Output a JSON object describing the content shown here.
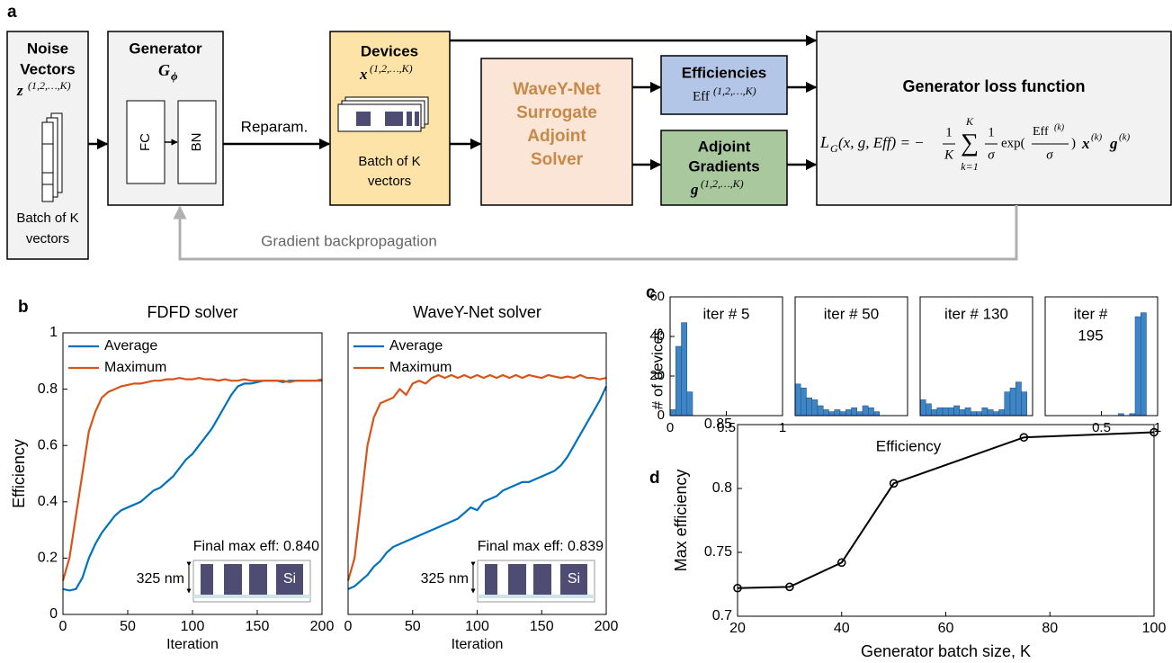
{
  "panel_labels": [
    "a",
    "b",
    "c",
    "d"
  ],
  "diagram": {
    "noise": {
      "title": [
        "Noise",
        "Vectors"
      ],
      "symbol": "z",
      "superscript": "(1,2,…,K)",
      "caption": [
        "Batch of K",
        "vectors"
      ]
    },
    "generator": {
      "title": "Generator",
      "symbol": "G",
      "subscript": "ϕ",
      "layers": [
        "FC",
        "BN"
      ]
    },
    "reparam": "Reparam.",
    "devices": {
      "title": "Devices",
      "symbol": "x",
      "superscript": "(1,2,…,K)",
      "caption": [
        "Batch of K",
        "vectors"
      ]
    },
    "solver": [
      "WaveY-Net",
      "Surrogate",
      "Adjoint",
      "Solver"
    ],
    "efficiencies": {
      "title": "Efficiencies",
      "symbol": "Eff",
      "superscript": "(1,2,…,K)"
    },
    "gradients": {
      "title": [
        "Adjoint",
        "Gradients"
      ],
      "symbol": "g",
      "superscript": "(1,2,…,K)"
    },
    "loss": {
      "title": "Generator loss function",
      "formula": {
        "lhs": "L",
        "lhs_sub": "G",
        "args": "(x, g, Eff) = −",
        "frac1_num": "1",
        "frac1_den": "K",
        "sum": "∑",
        "sum_top": "K",
        "sum_bottom": "k=1",
        "frac2_num": "1",
        "frac2_den": "σ",
        "exp": "exp(",
        "frac3_num": "Eff",
        "frac3_sup": "(k)",
        "frac3_den": "σ",
        "close": ")",
        "tail1": "x",
        "tail1_sup": "(k)",
        "tail2": "g",
        "tail2_sup": "(k)"
      }
    },
    "backprop": "Gradient backpropagation"
  },
  "panel_c_labels": {
    "x_label": "Efficiency",
    "y_label": "# of devices"
  },
  "chart_data": [
    {
      "type": "line",
      "title": "FDFD solver",
      "x_label": "Iteration",
      "y_label": "Efficiency",
      "x": [
        0,
        5,
        10,
        15,
        20,
        25,
        30,
        35,
        40,
        45,
        50,
        55,
        60,
        65,
        70,
        75,
        80,
        85,
        90,
        95,
        100,
        105,
        110,
        115,
        120,
        125,
        130,
        135,
        140,
        145,
        150,
        155,
        160,
        165,
        170,
        175,
        180,
        185,
        190,
        195,
        200
      ],
      "series": [
        {
          "name": "Average",
          "color": "#0072bd",
          "values": [
            0.09,
            0.085,
            0.09,
            0.13,
            0.2,
            0.25,
            0.29,
            0.32,
            0.35,
            0.37,
            0.38,
            0.39,
            0.4,
            0.42,
            0.44,
            0.45,
            0.47,
            0.49,
            0.52,
            0.55,
            0.57,
            0.6,
            0.63,
            0.66,
            0.7,
            0.74,
            0.78,
            0.81,
            0.82,
            0.82,
            0.825,
            0.83,
            0.83,
            0.83,
            0.825,
            0.83,
            0.83,
            0.83,
            0.83,
            0.83,
            0.83
          ]
        },
        {
          "name": "Maximum",
          "color": "#d95319",
          "values": [
            0.12,
            0.2,
            0.35,
            0.5,
            0.65,
            0.72,
            0.77,
            0.79,
            0.8,
            0.81,
            0.815,
            0.82,
            0.82,
            0.825,
            0.83,
            0.83,
            0.835,
            0.835,
            0.84,
            0.835,
            0.835,
            0.84,
            0.835,
            0.835,
            0.83,
            0.835,
            0.83,
            0.83,
            0.835,
            0.83,
            0.83,
            0.83,
            0.83,
            0.83,
            0.83,
            0.825,
            0.83,
            0.83,
            0.83,
            0.83,
            0.835
          ]
        }
      ],
      "xlim": [
        0,
        200
      ],
      "xticks": [
        0,
        50,
        100,
        150,
        200
      ],
      "ylim": [
        0,
        1
      ],
      "yticks": [
        0,
        0.2,
        0.4,
        0.6,
        0.8,
        1
      ],
      "legend": "upper left",
      "annotation": "Final max eff: 0.840",
      "inset": {
        "height_label": "325 nm",
        "material": "Si"
      }
    },
    {
      "type": "line",
      "title": "WaveY-Net solver",
      "x_label": "Iteration",
      "x": [
        0,
        5,
        10,
        15,
        20,
        25,
        30,
        35,
        40,
        45,
        50,
        55,
        60,
        65,
        70,
        75,
        80,
        85,
        90,
        95,
        100,
        105,
        110,
        115,
        120,
        125,
        130,
        135,
        140,
        145,
        150,
        155,
        160,
        165,
        170,
        175,
        180,
        185,
        190,
        195,
        200
      ],
      "series": [
        {
          "name": "Average",
          "color": "#0072bd",
          "values": [
            0.09,
            0.1,
            0.12,
            0.14,
            0.17,
            0.19,
            0.22,
            0.24,
            0.25,
            0.26,
            0.27,
            0.28,
            0.29,
            0.3,
            0.31,
            0.32,
            0.33,
            0.34,
            0.36,
            0.38,
            0.37,
            0.4,
            0.41,
            0.42,
            0.44,
            0.45,
            0.46,
            0.47,
            0.47,
            0.48,
            0.49,
            0.5,
            0.51,
            0.53,
            0.56,
            0.6,
            0.64,
            0.68,
            0.72,
            0.76,
            0.81
          ]
        },
        {
          "name": "Maximum",
          "color": "#d95319",
          "values": [
            0.12,
            0.2,
            0.4,
            0.6,
            0.7,
            0.75,
            0.76,
            0.77,
            0.8,
            0.78,
            0.82,
            0.83,
            0.82,
            0.84,
            0.85,
            0.84,
            0.85,
            0.84,
            0.85,
            0.84,
            0.85,
            0.84,
            0.85,
            0.84,
            0.85,
            0.84,
            0.85,
            0.84,
            0.85,
            0.845,
            0.84,
            0.85,
            0.845,
            0.84,
            0.845,
            0.84,
            0.85,
            0.84,
            0.84,
            0.835,
            0.84
          ]
        }
      ],
      "xlim": [
        0,
        200
      ],
      "xticks": [
        0,
        50,
        100,
        150,
        200
      ],
      "ylim": [
        0,
        1
      ],
      "legend": "upper left",
      "annotation": "Final max eff: 0.839",
      "inset": {
        "height_label": "325 nm",
        "material": "Si"
      }
    },
    {
      "type": "histogram",
      "title": "iter # 5",
      "color": "#3d85c6",
      "bins": [
        0,
        0.05,
        0.1,
        0.15,
        0.2,
        0.25,
        0.3,
        0.35,
        0.4,
        0.45,
        0.5,
        0.55,
        0.6,
        0.65,
        0.7,
        0.75,
        0.8,
        0.85,
        0.9,
        0.95,
        1
      ],
      "values": [
        3,
        35,
        47,
        12,
        0,
        0,
        0,
        0,
        0,
        0,
        0,
        0,
        0,
        0,
        0,
        0,
        0,
        0,
        0,
        0
      ],
      "xlim": [
        0,
        1
      ],
      "xticks": [
        0,
        0.5,
        1
      ],
      "ylim": [
        0,
        60
      ],
      "yticks": [
        0,
        20,
        40,
        60
      ]
    },
    {
      "type": "histogram",
      "title": "iter # 50",
      "color": "#3d85c6",
      "bins": [
        0,
        0.05,
        0.1,
        0.15,
        0.2,
        0.25,
        0.3,
        0.35,
        0.4,
        0.45,
        0.5,
        0.55,
        0.6,
        0.65,
        0.7,
        0.75,
        0.8,
        0.85,
        0.9,
        0.95,
        1
      ],
      "values": [
        16,
        14,
        9,
        8,
        5,
        3,
        2,
        3,
        2,
        3,
        4,
        2,
        5,
        4,
        2,
        0,
        0,
        0,
        0,
        0
      ],
      "xlim": [
        0,
        1
      ],
      "ylim": [
        0,
        60
      ]
    },
    {
      "type": "histogram",
      "title": "iter # 130",
      "color": "#3d85c6",
      "bins": [
        0,
        0.05,
        0.1,
        0.15,
        0.2,
        0.25,
        0.3,
        0.35,
        0.4,
        0.45,
        0.5,
        0.55,
        0.6,
        0.65,
        0.7,
        0.75,
        0.8,
        0.85,
        0.9,
        0.95,
        1
      ],
      "values": [
        8,
        6,
        3,
        4,
        4,
        4,
        5,
        3,
        4,
        2,
        2,
        4,
        3,
        2,
        3,
        12,
        14,
        17,
        12,
        0
      ],
      "xlim": [
        0,
        1
      ],
      "ylim": [
        0,
        60
      ]
    },
    {
      "type": "histogram",
      "title": [
        "iter #",
        "195"
      ],
      "color": "#3d85c6",
      "bins": [
        0,
        0.05,
        0.1,
        0.15,
        0.2,
        0.25,
        0.3,
        0.35,
        0.4,
        0.45,
        0.5,
        0.55,
        0.6,
        0.65,
        0.7,
        0.75,
        0.8,
        0.85,
        0.9,
        0.95,
        1
      ],
      "values": [
        0,
        0,
        0,
        0,
        0,
        0,
        0,
        0,
        0,
        0,
        0,
        0,
        0,
        1,
        0,
        1,
        50,
        52,
        0,
        0
      ],
      "xlim": [
        0,
        1
      ],
      "xticks": [
        0.5,
        1
      ],
      "ylim": [
        0,
        60
      ]
    },
    {
      "type": "line",
      "x_label": "Generator batch size, K",
      "y_label": "Max efficiency",
      "marker": "circle",
      "x": [
        20,
        30,
        40,
        50,
        75,
        100
      ],
      "series": [
        {
          "color": "#000000",
          "values": [
            0.722,
            0.723,
            0.742,
            0.804,
            0.84,
            0.844
          ]
        }
      ],
      "xlim": [
        20,
        100
      ],
      "xticks": [
        20,
        40,
        60,
        80,
        100
      ],
      "ylim": [
        0.7,
        0.85
      ],
      "yticks": [
        0.7,
        0.75,
        0.8,
        0.85
      ]
    }
  ]
}
